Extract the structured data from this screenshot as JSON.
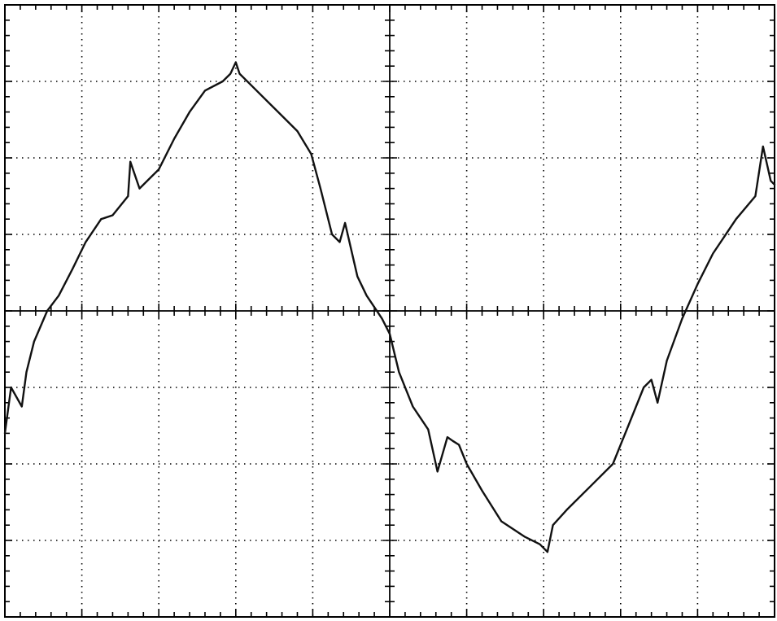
{
  "chart_data": {
    "type": "line",
    "title": "",
    "xlabel": "",
    "ylabel": "",
    "grid": true,
    "xlim": [
      0,
      10
    ],
    "ylim": [
      -4,
      4
    ],
    "x_divisions": 10,
    "y_divisions": 8,
    "minor_ticks_per_division": 5,
    "colors": {
      "trace": "#111111",
      "grid": "#000000",
      "background": "#ffffff"
    },
    "series": [
      {
        "x": [
          0.0,
          0.08,
          0.22,
          0.28,
          0.38,
          0.55,
          0.7,
          0.88,
          1.05,
          1.25,
          1.4,
          1.6,
          1.63,
          1.75,
          1.9,
          2.0,
          2.2,
          2.4,
          2.6,
          2.83,
          2.93,
          3.0,
          3.05,
          3.2,
          3.5,
          3.8,
          3.98,
          4.1,
          4.25,
          4.35,
          4.42,
          4.5,
          4.58,
          4.7,
          4.9,
          5.0,
          5.12,
          5.3,
          5.5,
          5.62,
          5.75,
          5.82,
          5.9,
          6.0,
          6.2,
          6.45,
          6.75,
          6.95,
          7.05,
          7.12,
          7.3,
          7.6,
          7.9,
          8.1,
          8.3,
          8.4,
          8.48,
          8.6,
          8.8,
          9.0,
          9.2,
          9.5,
          9.75,
          9.85,
          9.95,
          10.0
        ],
        "y": [
          -1.6,
          -1.0,
          -1.25,
          -0.8,
          -0.4,
          0.0,
          0.2,
          0.55,
          0.9,
          1.2,
          1.25,
          1.5,
          1.95,
          1.6,
          1.75,
          1.85,
          2.25,
          2.6,
          2.88,
          3.0,
          3.1,
          3.25,
          3.1,
          2.95,
          2.65,
          2.35,
          2.05,
          1.6,
          1.0,
          0.9,
          1.15,
          0.8,
          0.45,
          0.2,
          -0.1,
          -0.3,
          -0.8,
          -1.25,
          -1.55,
          -2.1,
          -1.65,
          -1.7,
          -1.75,
          -2.0,
          -2.35,
          -2.75,
          -2.95,
          -3.05,
          -3.15,
          -2.8,
          -2.6,
          -2.3,
          -2.0,
          -1.5,
          -1.0,
          -0.9,
          -1.2,
          -0.65,
          -0.1,
          0.35,
          0.75,
          1.2,
          1.5,
          2.15,
          1.7,
          1.65
        ]
      }
    ]
  }
}
